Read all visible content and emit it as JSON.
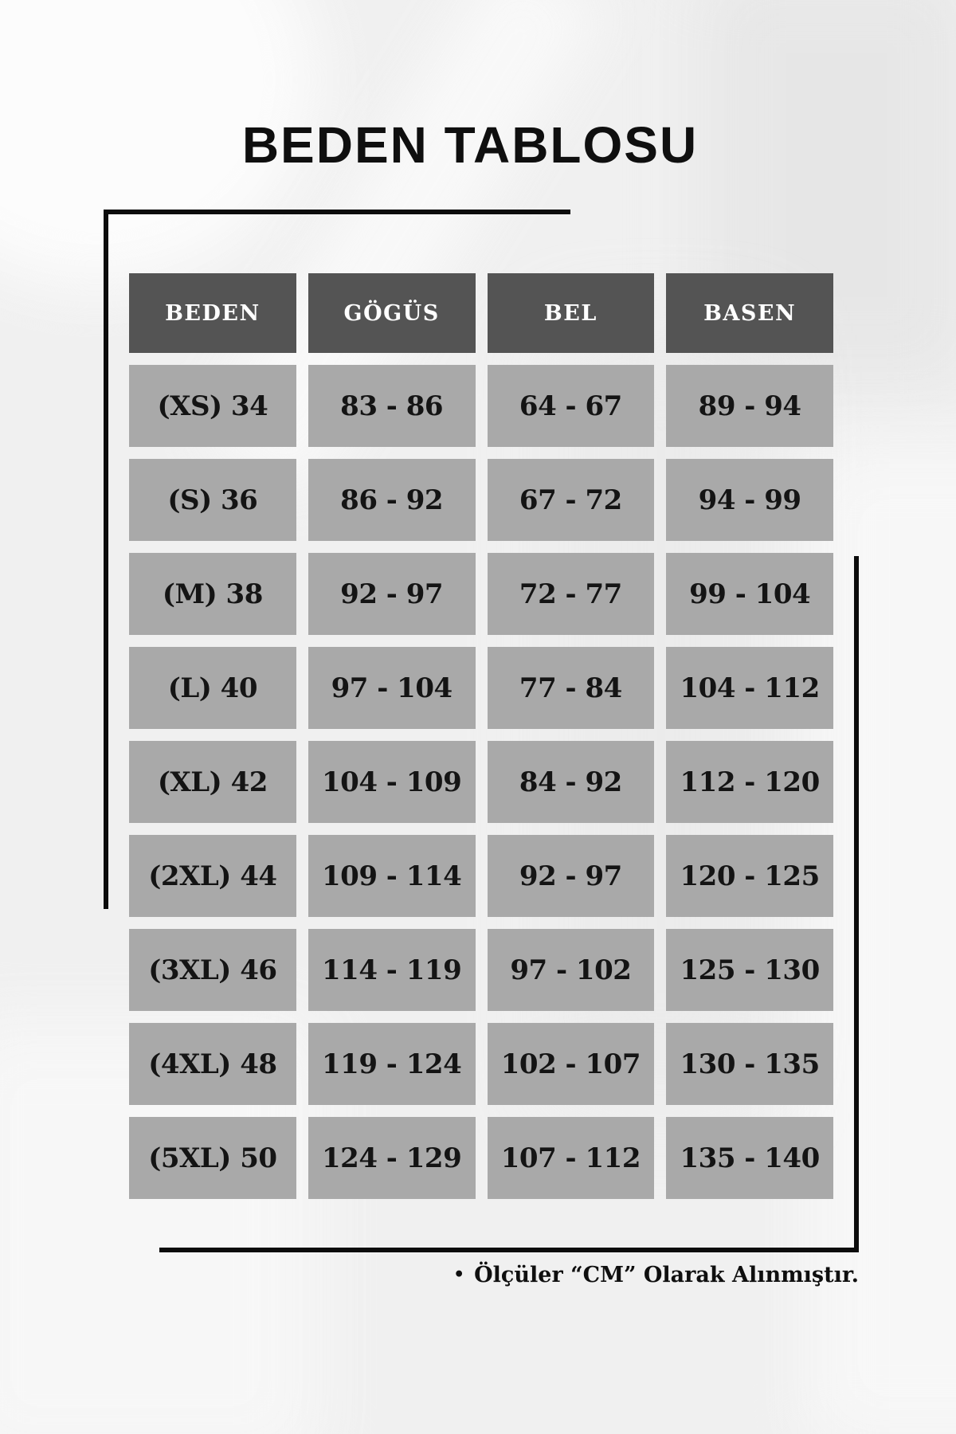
{
  "title": "BEDEN TABLOSU",
  "table": {
    "headers": [
      "BEDEN",
      "GÖGÜS",
      "BEL",
      "BASEN"
    ],
    "rows": [
      [
        "(XS) 34",
        "83 - 86",
        "64 - 67",
        "89 - 94"
      ],
      [
        "(S) 36",
        "86 - 92",
        "67 - 72",
        "94 - 99"
      ],
      [
        "(M) 38",
        "92 - 97",
        "72 - 77",
        "99 - 104"
      ],
      [
        "(L) 40",
        "97 - 104",
        "77 - 84",
        "104 - 112"
      ],
      [
        "(XL) 42",
        "104 - 109",
        "84 - 92",
        "112 - 120"
      ],
      [
        "(2XL) 44",
        "109 - 114",
        "92 - 97",
        "120 - 125"
      ],
      [
        "(3XL) 46",
        "114 - 119",
        "97 - 102",
        "125 - 130"
      ],
      [
        "(4XL) 48",
        "119 - 124",
        "102 - 107",
        "130 - 135"
      ],
      [
        "(5XL) 50",
        "124 - 129",
        "107 - 112",
        "135 - 140"
      ]
    ]
  },
  "footnote": {
    "bullet": "•",
    "text": "Ölçüler “CM” Olarak Alınmıştır."
  },
  "colors": {
    "page_bg": "#f0f0f0",
    "header_bg": "#545454",
    "header_text": "#ffffff",
    "cell_bg": "#a9a9a9",
    "cell_text": "#141414",
    "line": "#0c0c0c"
  }
}
